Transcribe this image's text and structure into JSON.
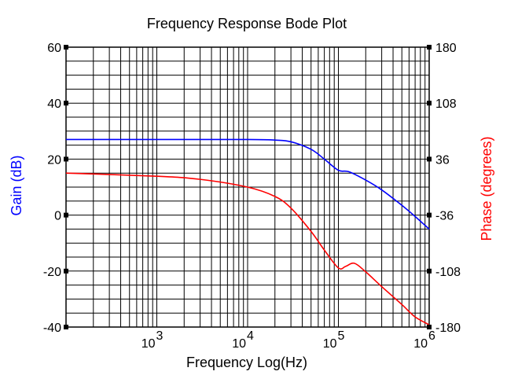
{
  "chart_data": {
    "type": "line",
    "title": "Frequency Response Bode Plot",
    "xlabel": "Frequency Log(Hz)",
    "x_scale": "log",
    "xlim": [
      100,
      1000000
    ],
    "x_ticks": [
      {
        "value": 1000,
        "base": "10",
        "exp": "3"
      },
      {
        "value": 10000,
        "base": "10",
        "exp": "4"
      },
      {
        "value": 100000,
        "base": "10",
        "exp": "5"
      },
      {
        "value": 1000000,
        "base": "10",
        "exp": "6"
      }
    ],
    "y_left": {
      "label": "Gain (dB)",
      "color": "#0000ff",
      "lim": [
        -40,
        60
      ],
      "ticks": [
        "60",
        "40",
        "20",
        "0",
        "-20",
        "-40"
      ]
    },
    "y_right": {
      "label": "Phase (degrees)",
      "color": "#ff0000",
      "lim": [
        -180,
        180
      ],
      "ticks": [
        "180",
        "108",
        "36",
        "-36",
        "-108",
        "-180"
      ]
    },
    "grid": true,
    "series": [
      {
        "axis": "left",
        "color": "#0000ff",
        "x": [
          100,
          1000,
          10000,
          20000,
          30000,
          50000,
          70000,
          100000,
          130000,
          200000,
          300000,
          500000,
          700000,
          1000000
        ],
        "y": [
          27,
          27,
          27,
          26.8,
          26.2,
          23.5,
          20,
          16,
          15.5,
          12.5,
          9,
          3.5,
          -0.5,
          -5
        ]
      },
      {
        "axis": "right",
        "color": "#ff0000",
        "x": [
          100,
          1000,
          3000,
          10000,
          20000,
          30000,
          50000,
          70000,
          100000,
          120000,
          150000,
          200000,
          300000,
          500000,
          700000,
          1000000
        ],
        "y": [
          18,
          14,
          10,
          0,
          -12,
          -27,
          -57,
          -81,
          -104,
          -102,
          -98,
          -109,
          -128,
          -151,
          -167,
          -177
        ]
      }
    ]
  }
}
